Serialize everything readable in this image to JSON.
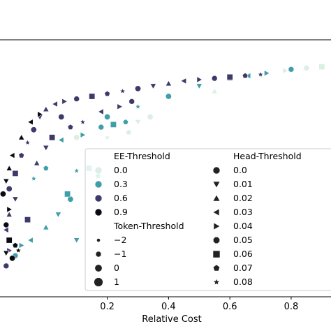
{
  "chart_data": {
    "type": "scatter",
    "xlabel": "Relative Cost",
    "xlim": [
      -0.15,
      0.93
    ],
    "x_ticks": [
      {
        "value": 0.2,
        "label": "0.2"
      },
      {
        "value": 0.4,
        "label": "0.4"
      },
      {
        "value": 0.6,
        "label": "0.6"
      },
      {
        "value": 0.8,
        "label": "0.8"
      }
    ],
    "ylim": [
      0.0,
      1.0
    ],
    "grid": false,
    "legend_position": "lower-right",
    "legend": {
      "ee_threshold": {
        "title": "EE-Threshold",
        "entries": [
          {
            "label": "0.0",
            "color": "#dcefe3"
          },
          {
            "label": "0.3",
            "color": "#3f9ea8"
          },
          {
            "label": "0.6",
            "color": "#3b3a6b"
          },
          {
            "label": "0.9",
            "color": "#0a0a12"
          }
        ]
      },
      "token_threshold": {
        "title": "Token-Threshold",
        "entries": [
          {
            "label": "−2",
            "size": 1
          },
          {
            "label": "−1",
            "size": 2
          },
          {
            "label": "0",
            "size": 3
          },
          {
            "label": "1",
            "size": 4
          }
        ]
      },
      "head_threshold": {
        "title": "Head-Threshold",
        "entries": [
          {
            "label": "0.0",
            "marker": "circle"
          },
          {
            "label": "0.01",
            "marker": "triangle-down"
          },
          {
            "label": "0.02",
            "marker": "triangle-up"
          },
          {
            "label": "0.03",
            "marker": "triangle-left"
          },
          {
            "label": "0.04",
            "marker": "triangle-right"
          },
          {
            "label": "0.05",
            "marker": "octagon"
          },
          {
            "label": "0.06",
            "marker": "square"
          },
          {
            "label": "0.07",
            "marker": "pentagon"
          },
          {
            "label": "0.08",
            "marker": "star"
          }
        ]
      }
    },
    "series": [
      {
        "ee": "0.0",
        "color": "#dcefe3",
        "points": [
          [
            0.1,
            0.62
          ],
          [
            0.3,
            0.68
          ],
          [
            0.55,
            0.8
          ],
          [
            0.7,
            0.86
          ],
          [
            0.78,
            0.88
          ],
          [
            0.85,
            0.89
          ],
          [
            0.9,
            0.895
          ],
          [
            0.27,
            0.64
          ],
          [
            0.2,
            0.62
          ],
          [
            0.34,
            0.7
          ]
        ]
      },
      {
        "ee": "0.3",
        "color": "#3f9ea8",
        "points": [
          [
            0.05,
            0.61
          ],
          [
            0.12,
            0.63
          ],
          [
            0.18,
            0.66
          ],
          [
            0.22,
            0.67
          ],
          [
            0.26,
            0.68
          ],
          [
            0.3,
            0.74
          ],
          [
            0.4,
            0.78
          ],
          [
            0.5,
            0.82
          ],
          [
            0.6,
            0.85
          ],
          [
            0.66,
            0.86
          ],
          [
            0.72,
            0.87
          ],
          [
            0.8,
            0.885
          ],
          [
            0.14,
            0.5
          ],
          [
            0.17,
            0.47
          ],
          [
            0.1,
            0.49
          ],
          [
            0.08,
            0.38
          ],
          [
            0.04,
            0.32
          ],
          [
            0.0,
            0.27
          ],
          [
            -0.05,
            0.22
          ],
          [
            -0.08,
            0.2
          ],
          [
            -0.1,
            0.16
          ],
          [
            0.07,
            0.4
          ],
          [
            0.0,
            0.5
          ],
          [
            -0.04,
            0.46
          ],
          [
            0.2,
            0.7
          ],
          [
            0.1,
            0.22
          ]
        ]
      },
      {
        "ee": "0.6",
        "color": "#3b3a6b",
        "points": [
          [
            -0.1,
            0.48
          ],
          [
            -0.08,
            0.55
          ],
          [
            -0.06,
            0.6
          ],
          [
            -0.04,
            0.65
          ],
          [
            -0.02,
            0.7
          ],
          [
            0.0,
            0.73
          ],
          [
            0.03,
            0.75
          ],
          [
            0.06,
            0.76
          ],
          [
            0.1,
            0.77
          ],
          [
            0.15,
            0.78
          ],
          [
            0.2,
            0.79
          ],
          [
            0.25,
            0.8
          ],
          [
            0.3,
            0.81
          ],
          [
            0.35,
            0.82
          ],
          [
            0.4,
            0.83
          ],
          [
            0.45,
            0.84
          ],
          [
            0.5,
            0.845
          ],
          [
            0.55,
            0.85
          ],
          [
            0.6,
            0.855
          ],
          [
            0.65,
            0.86
          ],
          [
            0.7,
            0.865
          ],
          [
            -0.12,
            0.42
          ],
          [
            -0.1,
            0.38
          ],
          [
            -0.12,
            0.32
          ],
          [
            -0.13,
            0.26
          ],
          [
            -0.12,
            0.18
          ],
          [
            -0.13,
            0.12
          ],
          [
            0.02,
            0.62
          ],
          [
            0.08,
            0.66
          ],
          [
            0.12,
            0.68
          ],
          [
            0.05,
            0.7
          ],
          [
            0.0,
            0.58
          ],
          [
            -0.03,
            0.52
          ],
          [
            0.18,
            0.72
          ],
          [
            0.24,
            0.74
          ],
          [
            0.28,
            0.76
          ],
          [
            -0.06,
            0.3
          ]
        ]
      },
      {
        "ee": "0.9",
        "color": "#0a0a12",
        "points": [
          [
            -0.14,
            0.4
          ],
          [
            -0.13,
            0.45
          ],
          [
            -0.12,
            0.5
          ],
          [
            -0.11,
            0.55
          ],
          [
            -0.12,
            0.34
          ],
          [
            -0.13,
            0.28
          ],
          [
            -0.12,
            0.22
          ],
          [
            -0.1,
            0.2
          ],
          [
            -0.09,
            0.18
          ],
          [
            -0.11,
            0.15
          ],
          [
            -0.13,
            0.17
          ],
          [
            -0.08,
            0.62
          ],
          [
            -0.05,
            0.68
          ],
          [
            -0.02,
            0.71
          ]
        ]
      }
    ]
  }
}
